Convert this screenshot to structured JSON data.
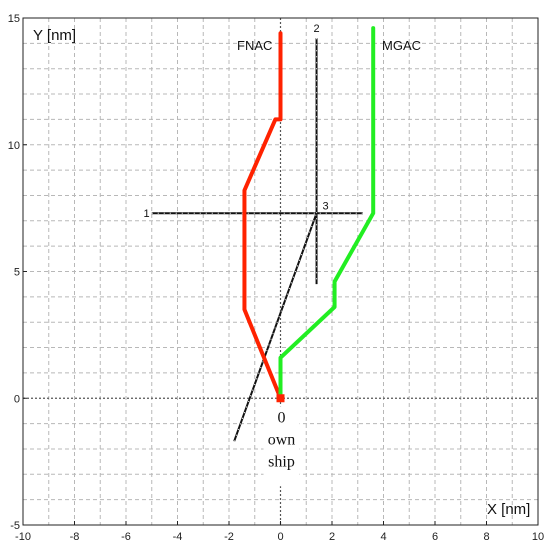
{
  "chart_data": {
    "type": "line",
    "title": "",
    "xlabel": "X [nm]",
    "ylabel": "Y [nm]",
    "xlim": [
      -10,
      10
    ],
    "ylim": [
      -5,
      15
    ],
    "xticks": [
      -10,
      -8,
      -6,
      -4,
      -2,
      0,
      2,
      4,
      6,
      8,
      10
    ],
    "yticks": [
      -5,
      0,
      5,
      10,
      15
    ],
    "grid": true,
    "grid_style": "dashed",
    "colors": {
      "fnac": "#ff2200",
      "mgac": "#22ee22",
      "track": "#111111",
      "own_ship": "#ff2200"
    },
    "series": [
      {
        "name": "FNAC",
        "style": "solid",
        "x": [
          0,
          -1.4,
          -1.4,
          -0.2,
          0,
          0
        ],
        "y": [
          0,
          3.5,
          8.2,
          11,
          11,
          14.4
        ]
      },
      {
        "name": "MGAC",
        "style": "solid",
        "x": [
          0,
          0,
          2.1,
          2.1,
          3.6,
          3.6
        ],
        "y": [
          0,
          1.6,
          3.6,
          4.6,
          7.3,
          14.6
        ]
      },
      {
        "name": "",
        "style": "dotted",
        "x": [
          -5,
          3.2
        ],
        "y": [
          7.3,
          7.3
        ]
      },
      {
        "name": "",
        "style": "dotted",
        "x": [
          1.4,
          1.4
        ],
        "y": [
          14.2,
          4.5
        ]
      },
      {
        "name": "",
        "style": "dotted",
        "x": [
          -1.8,
          1.4
        ],
        "y": [
          -1.7,
          7.3
        ]
      }
    ],
    "annotations": [
      {
        "text": "1",
        "x": -5.2,
        "y": 7.3
      },
      {
        "text": "2",
        "x": 1.4,
        "y": 14.6
      },
      {
        "text": "3",
        "x": 1.75,
        "y": 7.6
      }
    ],
    "own_ship": {
      "label_lines": [
        "0",
        "own",
        "ship"
      ],
      "x": 0,
      "y": 0
    }
  }
}
